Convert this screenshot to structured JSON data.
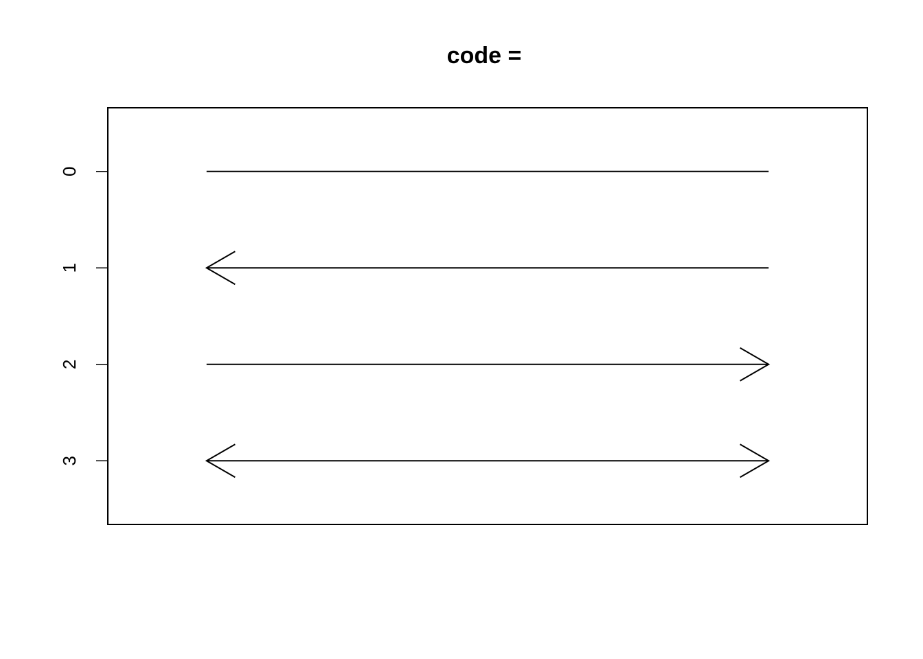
{
  "chart_data": {
    "type": "arrows",
    "title": "code =",
    "xlabel": "",
    "ylabel": "",
    "ylim": [
      -0.66,
      3.66
    ],
    "xlim": [
      0,
      1
    ],
    "y_reversed": true,
    "grid": false,
    "axes": {
      "x_ticks_shown": false,
      "y_ticks_shown": true
    },
    "y_ticks": [
      {
        "value": 0,
        "label": "0"
      },
      {
        "value": 1,
        "label": "1"
      },
      {
        "value": 2,
        "label": "2"
      },
      {
        "value": 3,
        "label": "3"
      }
    ],
    "arrows": [
      {
        "code": 0,
        "y": 0,
        "x0": 0.13,
        "x1": 0.87,
        "head_start": false,
        "head_end": false
      },
      {
        "code": 1,
        "y": 1,
        "x0": 0.13,
        "x1": 0.87,
        "head_start": true,
        "head_end": false
      },
      {
        "code": 2,
        "y": 2,
        "x0": 0.13,
        "x1": 0.87,
        "head_start": false,
        "head_end": true
      },
      {
        "code": 3,
        "y": 3,
        "x0": 0.13,
        "x1": 0.87,
        "head_start": true,
        "head_end": true
      }
    ],
    "colors": {
      "line": "#000000",
      "background": "#ffffff"
    }
  }
}
